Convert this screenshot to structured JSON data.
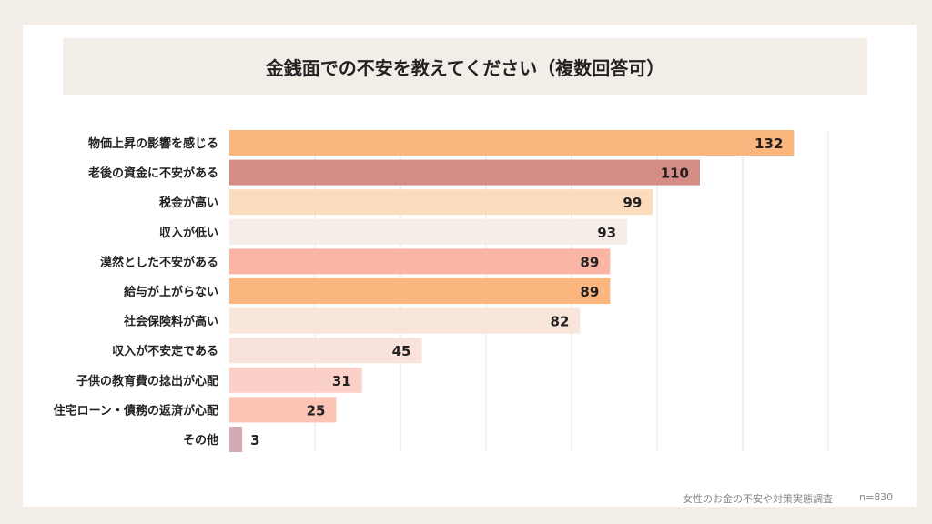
{
  "chart_data": {
    "type": "bar",
    "orientation": "horizontal",
    "title": "金銭面での不安を教えてください（複数回答可）",
    "categories": [
      "物価上昇の影響を感じる",
      "老後の資金に不安がある",
      "税金が高い",
      "収入が低い",
      "漠然とした不安がある",
      "給与が上がらない",
      "社会保険料が高い",
      "収入が不安定である",
      "子供の教育費の捻出が心配",
      "住宅ローン・債務の返済が心配",
      "その他"
    ],
    "values": [
      132,
      110,
      99,
      93,
      89,
      89,
      82,
      45,
      31,
      25,
      3
    ],
    "colors": [
      "#fbb67e",
      "#d48c84",
      "#fbdcbc",
      "#f6ece8",
      "#fbb5a5",
      "#fbb67e",
      "#f8e6da",
      "#f9e2dc",
      "#fbd0c8",
      "#fbc4b5",
      "#d4aab5"
    ],
    "xlim": [
      0,
      140
    ],
    "grid": true,
    "data_labels": true
  },
  "footer": {
    "source": "女性のお金の不安や対策実態調査",
    "n": "n=830"
  }
}
